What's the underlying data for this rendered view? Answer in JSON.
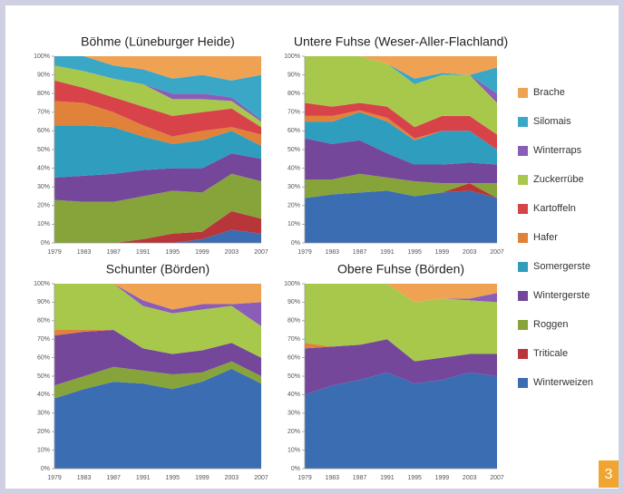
{
  "chart_data": [
    {
      "type": "area",
      "title": "Böhme (Lüneburger Heide)",
      "categories": [
        "1979",
        "1983",
        "1987",
        "1991",
        "1995",
        "1999",
        "2003",
        "2007"
      ],
      "ylim": [
        0,
        100
      ],
      "yticks": [
        {
          "value": 0,
          "label": "0%"
        },
        {
          "value": 10,
          "label": "10%"
        },
        {
          "value": 20,
          "label": "20%"
        },
        {
          "value": 30,
          "label": "30%"
        },
        {
          "value": 40,
          "label": "40%"
        },
        {
          "value": 50,
          "label": "50%"
        },
        {
          "value": 60,
          "label": "60%"
        },
        {
          "value": 70,
          "label": "70%"
        },
        {
          "value": 80,
          "label": "80%"
        },
        {
          "value": 90,
          "label": "90%"
        },
        {
          "value": 100,
          "label": "100%"
        }
      ],
      "series": [
        {
          "name": "Winterweizen",
          "color": "#3b6db3",
          "values": [
            0,
            0,
            0,
            0,
            0,
            2,
            7,
            5
          ]
        },
        {
          "name": "Triticale",
          "color": "#b8353a",
          "values": [
            0,
            0,
            0,
            2,
            5,
            4,
            10,
            8
          ]
        },
        {
          "name": "Roggen",
          "color": "#86a43a",
          "values": [
            23,
            22,
            22,
            23,
            23,
            21,
            20,
            20
          ]
        },
        {
          "name": "Wintergerste",
          "color": "#74479b",
          "values": [
            12,
            14,
            15,
            14,
            12,
            13,
            11,
            12
          ]
        },
        {
          "name": "Somergerste",
          "color": "#2f9dbd",
          "values": [
            28,
            27,
            25,
            18,
            13,
            15,
            12,
            7
          ]
        },
        {
          "name": "Hafer",
          "color": "#e0823a",
          "values": [
            13,
            12,
            8,
            6,
            4,
            5,
            2,
            6
          ]
        },
        {
          "name": "Kartoffeln",
          "color": "#d8434a",
          "values": [
            11,
            8,
            8,
            10,
            11,
            10,
            10,
            4
          ]
        },
        {
          "name": "Zuckerrübe",
          "color": "#a8c84c",
          "values": [
            8,
            9,
            10,
            12,
            9,
            7,
            4,
            3
          ]
        },
        {
          "name": "Winterraps",
          "color": "#8a5db8",
          "values": [
            0,
            0,
            0,
            0,
            3,
            3,
            2,
            1
          ]
        },
        {
          "name": "Silomais",
          "color": "#3aa7c7",
          "values": [
            5,
            8,
            7,
            8,
            8,
            10,
            9,
            24
          ]
        },
        {
          "name": "Brache",
          "color": "#f0a253",
          "values": [
            0,
            0,
            5,
            7,
            12,
            10,
            13,
            10
          ]
        }
      ]
    },
    {
      "type": "area",
      "title": "Untere Fuhse (Weser-Aller-Flachland)",
      "categories": [
        "1979",
        "1983",
        "1987",
        "1991",
        "1995",
        "1999",
        "2003",
        "2007"
      ],
      "ylim": [
        0,
        100
      ],
      "yticks": [
        {
          "value": 0,
          "label": "0%"
        },
        {
          "value": 10,
          "label": "10%"
        },
        {
          "value": 20,
          "label": "20%"
        },
        {
          "value": 30,
          "label": "30%"
        },
        {
          "value": 40,
          "label": "40%"
        },
        {
          "value": 50,
          "label": "50%"
        },
        {
          "value": 60,
          "label": "60%"
        },
        {
          "value": 70,
          "label": "70%"
        },
        {
          "value": 80,
          "label": "80%"
        },
        {
          "value": 90,
          "label": "90%"
        },
        {
          "value": 100,
          "label": "100%"
        }
      ],
      "series": [
        {
          "values": [
            24,
            26,
            27,
            28,
            25,
            27,
            28,
            24
          ]
        },
        {
          "values": [
            0,
            0,
            0,
            0,
            0,
            0,
            4,
            0
          ]
        },
        {
          "values": [
            10,
            8,
            10,
            7,
            8,
            5,
            0,
            8
          ]
        },
        {
          "values": [
            22,
            19,
            18,
            13,
            9,
            10,
            11,
            10
          ]
        },
        {
          "values": [
            9,
            12,
            15,
            17,
            13,
            18,
            17,
            8
          ]
        },
        {
          "values": [
            3,
            3,
            1,
            2,
            1,
            0,
            0,
            0
          ]
        },
        {
          "values": [
            7,
            5,
            4,
            6,
            6,
            8,
            8,
            8
          ]
        },
        {
          "values": [
            25,
            27,
            25,
            23,
            23,
            22,
            22,
            17
          ]
        },
        {
          "values": [
            0,
            0,
            0,
            0,
            0,
            0,
            0,
            5
          ]
        },
        {
          "values": [
            0,
            0,
            0,
            0,
            3,
            1,
            0,
            14
          ]
        },
        {
          "values": [
            0,
            0,
            0,
            4,
            12,
            9,
            10,
            6
          ]
        }
      ]
    },
    {
      "type": "area",
      "title": "Schunter (Börden)",
      "categories": [
        "1979",
        "1983",
        "1987",
        "1991",
        "1995",
        "1999",
        "2003",
        "2007"
      ],
      "ylim": [
        0,
        100
      ],
      "yticks": [
        {
          "value": 0,
          "label": "0%"
        },
        {
          "value": 10,
          "label": "10%"
        },
        {
          "value": 20,
          "label": "20%"
        },
        {
          "value": 30,
          "label": "30%"
        },
        {
          "value": 40,
          "label": "40%"
        },
        {
          "value": 50,
          "label": "50%"
        },
        {
          "value": 60,
          "label": "60%"
        },
        {
          "value": 70,
          "label": "70%"
        },
        {
          "value": 80,
          "label": "80%"
        },
        {
          "value": 90,
          "label": "90%"
        },
        {
          "value": 100,
          "label": "100%"
        }
      ],
      "series": [
        {
          "values": [
            38,
            43,
            47,
            46,
            43,
            47,
            54,
            46
          ]
        },
        {
          "values": [
            0,
            0,
            0,
            0,
            0,
            0,
            0,
            0
          ]
        },
        {
          "values": [
            7,
            7,
            8,
            7,
            8,
            5,
            4,
            4
          ]
        },
        {
          "values": [
            27,
            24,
            20,
            12,
            11,
            12,
            10,
            10
          ]
        },
        {
          "values": [
            0,
            0,
            0,
            0,
            0,
            0,
            0,
            0
          ]
        },
        {
          "values": [
            3,
            1,
            0,
            0,
            0,
            0,
            0,
            0
          ]
        },
        {
          "values": [
            0,
            0,
            0,
            0,
            0,
            0,
            0,
            0
          ]
        },
        {
          "values": [
            25,
            25,
            25,
            23,
            22,
            22,
            20,
            17
          ]
        },
        {
          "values": [
            0,
            0,
            0,
            3,
            2,
            3,
            1,
            13
          ]
        },
        {
          "values": [
            0,
            0,
            0,
            0,
            0,
            0,
            0,
            0
          ]
        },
        {
          "values": [
            0,
            0,
            0,
            9,
            14,
            11,
            11,
            10
          ]
        }
      ]
    },
    {
      "type": "area",
      "title": "Obere Fuhse (Börden)",
      "categories": [
        "1979",
        "1983",
        "1987",
        "1991",
        "1995",
        "1999",
        "2003",
        "2007"
      ],
      "ylim": [
        0,
        100
      ],
      "yticks": [
        {
          "value": 0,
          "label": "0%"
        },
        {
          "value": 10,
          "label": "10%"
        },
        {
          "value": 20,
          "label": "20%"
        },
        {
          "value": 30,
          "label": "30%"
        },
        {
          "value": 40,
          "label": "40%"
        },
        {
          "value": 50,
          "label": "50%"
        },
        {
          "value": 60,
          "label": "60%"
        },
        {
          "value": 70,
          "label": "70%"
        },
        {
          "value": 80,
          "label": "80%"
        },
        {
          "value": 90,
          "label": "90%"
        },
        {
          "value": 100,
          "label": "100%"
        }
      ],
      "series": [
        {
          "values": [
            40,
            45,
            48,
            52,
            46,
            48,
            52,
            50
          ]
        },
        {
          "values": [
            0,
            0,
            0,
            0,
            0,
            0,
            0,
            0
          ]
        },
        {
          "values": [
            0,
            0,
            0,
            0,
            0,
            0,
            0,
            0
          ]
        },
        {
          "values": [
            25,
            21,
            19,
            18,
            12,
            12,
            10,
            12
          ]
        },
        {
          "values": [
            0,
            0,
            0,
            0,
            0,
            0,
            0,
            0
          ]
        },
        {
          "values": [
            3,
            0,
            0,
            0,
            0,
            0,
            0,
            0
          ]
        },
        {
          "values": [
            0,
            0,
            0,
            0,
            0,
            0,
            0,
            0
          ]
        },
        {
          "values": [
            32,
            34,
            33,
            30,
            32,
            32,
            29,
            28
          ]
        },
        {
          "values": [
            0,
            0,
            0,
            0,
            0,
            0,
            1,
            5
          ]
        },
        {
          "values": [
            0,
            0,
            0,
            0,
            0,
            0,
            0,
            0
          ]
        },
        {
          "values": [
            0,
            0,
            0,
            0,
            10,
            8,
            8,
            5
          ]
        }
      ]
    }
  ],
  "badge": "3"
}
